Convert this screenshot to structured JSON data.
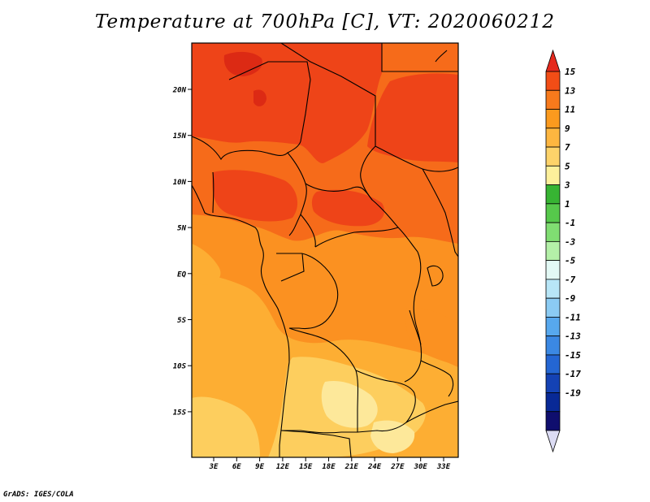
{
  "title": "Temperature at 700hPa [C], VT: 2020060212",
  "credit": "GrADS: IGES/COLA",
  "map": {
    "lat_ticks": [
      "20N",
      "15N",
      "10N",
      "5N",
      "EQ",
      "5S",
      "10S",
      "15S"
    ],
    "lon_ticks": [
      "3E",
      "6E",
      "9E",
      "12E",
      "15E",
      "18E",
      "21E",
      "24E",
      "27E",
      "30E",
      "33E"
    ]
  },
  "colorbar": {
    "labels": [
      "15",
      "13",
      "11",
      "9",
      "7",
      "5",
      "3",
      "1",
      "-1",
      "-3",
      "-5",
      "-7",
      "-9",
      "-11",
      "-13",
      "-15",
      "-17",
      "-19"
    ],
    "colors": [
      "#e5291d",
      "#f24d16",
      "#f77a1c",
      "#fb9a1e",
      "#fdb640",
      "#fdd36a",
      "#fdf09b",
      "#37b433",
      "#56c84b",
      "#80dd72",
      "#b4f0a8",
      "#e3f9f5",
      "#b8e6f7",
      "#8bcbf3",
      "#57a8ee",
      "#3b88e3",
      "#2466d3",
      "#1442b4",
      "#082996",
      "#0f0e6e",
      "#dcdcf4"
    ]
  },
  "field_colors": {
    "c15": "#dc2a14",
    "c13": "#ee4418",
    "c11": "#f66b1a",
    "c9": "#fb9121",
    "c7": "#fdae33",
    "c5": "#fdce5e",
    "c3": "#fde89a"
  }
}
